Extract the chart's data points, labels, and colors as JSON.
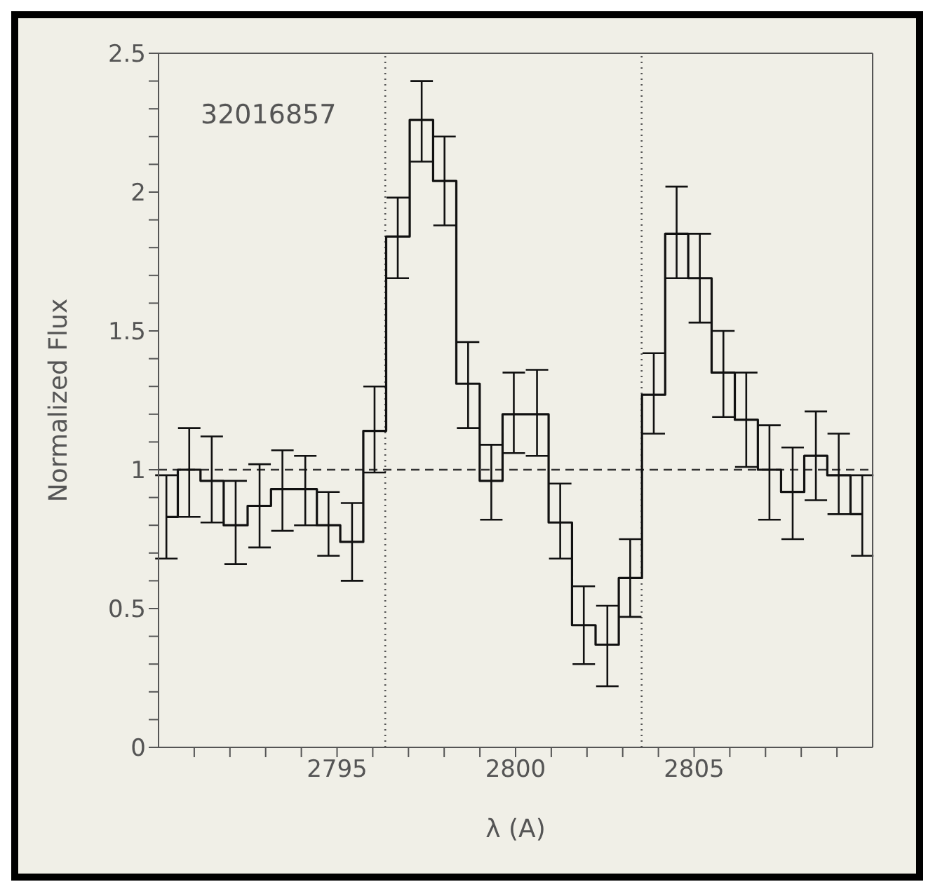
{
  "chart_data": {
    "type": "step",
    "xlabel": "λ (A)",
    "ylabel": "Normalized Flux",
    "annotations": [
      "32016857"
    ],
    "xlim": [
      2790,
      2810
    ],
    "xticks": [
      {
        "value": 2791,
        "label": null
      },
      {
        "value": 2792,
        "label": null
      },
      {
        "value": 2793,
        "label": null
      },
      {
        "value": 2794,
        "label": null
      },
      2795,
      {
        "value": 2796,
        "label": null
      },
      {
        "value": 2797,
        "label": null
      },
      {
        "value": 2798,
        "label": null
      },
      {
        "value": 2799,
        "label": null
      },
      2800,
      {
        "value": 2801,
        "label": null
      },
      {
        "value": 2802,
        "label": null
      },
      {
        "value": 2803,
        "label": null
      },
      {
        "value": 2804,
        "label": null
      },
      2805,
      {
        "value": 2806,
        "label": null
      },
      {
        "value": 2807,
        "label": null
      },
      {
        "value": 2808,
        "label": null
      },
      {
        "value": 2809,
        "label": null
      }
    ],
    "ylim": [
      0,
      2.5
    ],
    "yticks": [
      0,
      {
        "value": 0.1,
        "label": null
      },
      {
        "value": 0.2,
        "label": null
      },
      {
        "value": 0.3,
        "label": null
      },
      {
        "value": 0.4,
        "label": null
      },
      0.5,
      {
        "value": 0.6,
        "label": null
      },
      {
        "value": 0.7,
        "label": null
      },
      {
        "value": 0.8,
        "label": null
      },
      {
        "value": 0.9,
        "label": null
      },
      1,
      {
        "value": 1.1,
        "label": null
      },
      {
        "value": 1.2,
        "label": null
      },
      {
        "value": 1.3,
        "label": null
      },
      {
        "value": 1.4,
        "label": null
      },
      1.5,
      {
        "value": 1.6,
        "label": null
      },
      {
        "value": 1.7,
        "label": null
      },
      {
        "value": 1.8,
        "label": null
      },
      {
        "value": 1.9,
        "label": null
      },
      2,
      {
        "value": 2.1,
        "label": null
      },
      {
        "value": 2.2,
        "label": null
      },
      {
        "value": 2.3,
        "label": null
      },
      {
        "value": 2.4,
        "label": null
      },
      2.5
    ],
    "marker": "none",
    "x": [
      2790.22,
      2790.86,
      2791.49,
      2792.16,
      2792.83,
      2793.47,
      2794.11,
      2794.76,
      2795.42,
      2796.05,
      2796.7,
      2797.37,
      2798.01,
      2798.67,
      2799.32,
      2799.95,
      2800.6,
      2801.25,
      2801.91,
      2802.57,
      2803.21,
      2803.87,
      2804.51,
      2805.16,
      2805.82,
      2806.46,
      2807.11,
      2807.76,
      2808.41,
      2809.05,
      2809.71
    ],
    "series": [
      {
        "color": "#111111",
        "values": [
          0.83,
          1.0,
          0.96,
          0.8,
          0.87,
          0.93,
          0.93,
          0.8,
          0.74,
          1.14,
          1.84,
          2.26,
          2.04,
          1.31,
          0.96,
          1.2,
          1.2,
          0.81,
          0.44,
          0.37,
          0.61,
          1.27,
          1.85,
          1.69,
          1.35,
          1.18,
          1.0,
          0.92,
          1.05,
          0.98,
          0.84
        ],
        "errors": [
          [
            0.68,
            0.98
          ],
          [
            0.83,
            1.15
          ],
          [
            0.81,
            1.12
          ],
          [
            0.66,
            0.96
          ],
          [
            0.72,
            1.02
          ],
          [
            0.78,
            1.07
          ],
          [
            0.8,
            1.05
          ],
          [
            0.69,
            0.92
          ],
          [
            0.6,
            0.88
          ],
          [
            0.99,
            1.3
          ],
          [
            1.69,
            1.98
          ],
          [
            2.11,
            2.4
          ],
          [
            1.88,
            2.2
          ],
          [
            1.15,
            1.46
          ],
          [
            0.82,
            1.09
          ],
          [
            1.06,
            1.35
          ],
          [
            1.05,
            1.36
          ],
          [
            0.68,
            0.95
          ],
          [
            0.3,
            0.58
          ],
          [
            0.22,
            0.51
          ],
          [
            0.47,
            0.75
          ],
          [
            1.13,
            1.42
          ],
          [
            1.69,
            2.02
          ],
          [
            1.53,
            1.85
          ],
          [
            1.19,
            1.5
          ],
          [
            1.01,
            1.35
          ],
          [
            0.82,
            1.16
          ],
          [
            0.75,
            1.08
          ],
          [
            0.89,
            1.21
          ],
          [
            0.84,
            1.13
          ],
          [
            0.69,
            0.98
          ]
        ]
      }
    ],
    "ref_lines": [
      {
        "axis": "x",
        "value": 2796.35,
        "color": "#555555",
        "line_style": "dotted"
      },
      {
        "axis": "x",
        "value": 2803.53,
        "color": "#555555",
        "line_style": "dotted"
      },
      {
        "axis": "y",
        "value": 1,
        "color": "#333333",
        "line_style": "dashed"
      }
    ]
  }
}
